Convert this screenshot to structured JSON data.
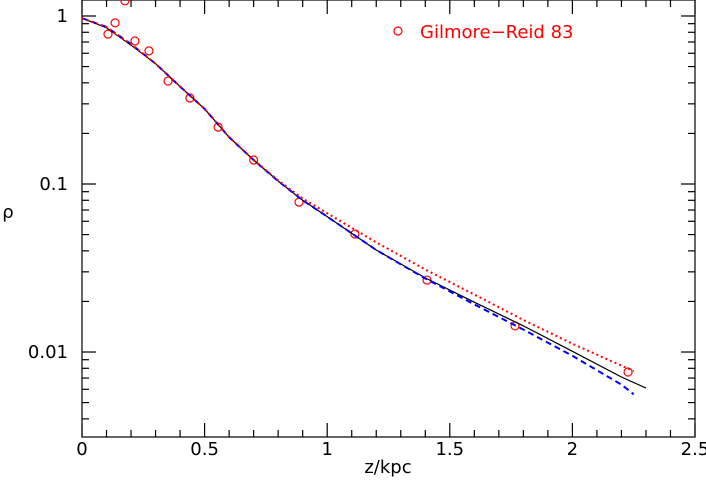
{
  "chart_data": {
    "type": "line",
    "xlabel": "z/kpc",
    "ylabel": "ρ",
    "xlim": [
      0,
      2.5
    ],
    "xticks": [
      0,
      0.5,
      1,
      1.5,
      2,
      2.5
    ],
    "ylim": [
      0.00312,
      1.245
    ],
    "yscale": "log",
    "yticks": [
      0.01,
      0.1,
      1
    ],
    "series": [
      {
        "name": "Gilmore−Reid 83",
        "style": "points",
        "color": "#ff0000",
        "x": [
          0.106,
          0.135,
          0.175,
          0.216,
          0.273,
          0.351,
          0.44,
          0.555,
          0.7,
          0.885,
          1.113,
          1.407,
          1.766,
          2.227
        ],
        "values": [
          0.78,
          0.91,
          1.23,
          0.71,
          0.62,
          0.41,
          0.325,
          0.218,
          0.139,
          0.078,
          0.0504,
          0.0268,
          0.0143,
          0.0076
        ]
      },
      {
        "style": "solid",
        "color": "#000000",
        "x": [
          0,
          0.1,
          0.2,
          0.3,
          0.4,
          0.5,
          0.6,
          0.7,
          0.8,
          0.9,
          1.0,
          1.2,
          1.4,
          1.6,
          1.8,
          2.0,
          2.2,
          2.3
        ],
        "values": [
          0.97,
          0.85,
          0.67,
          0.52,
          0.38,
          0.28,
          0.19,
          0.139,
          0.104,
          0.08,
          0.064,
          0.0405,
          0.0276,
          0.0198,
          0.0143,
          0.0101,
          0.0071,
          0.0061
        ]
      },
      {
        "style": "dashed",
        "color": "#0000ff",
        "x": [
          0,
          0.1,
          0.2,
          0.3,
          0.4,
          0.5,
          0.6,
          0.7,
          0.8,
          0.9,
          1.0,
          1.2,
          1.4,
          1.6,
          1.8,
          2.0,
          2.2,
          2.25
        ],
        "values": [
          0.97,
          0.86,
          0.68,
          0.52,
          0.38,
          0.28,
          0.19,
          0.139,
          0.104,
          0.08,
          0.064,
          0.0405,
          0.0274,
          0.0192,
          0.0136,
          0.0095,
          0.0064,
          0.0056
        ]
      },
      {
        "style": "dotted",
        "color": "#ff0000",
        "x": [
          0,
          0.1,
          0.2,
          0.3,
          0.4,
          0.5,
          0.6,
          0.7,
          0.8,
          0.9,
          1.0,
          1.2,
          1.4,
          1.6,
          1.8,
          2.0,
          2.2,
          2.25
        ],
        "values": [
          0.97,
          0.86,
          0.68,
          0.52,
          0.38,
          0.28,
          0.19,
          0.139,
          0.105,
          0.082,
          0.067,
          0.045,
          0.031,
          0.022,
          0.0155,
          0.0112,
          0.0083,
          0.0077
        ]
      }
    ],
    "legend": "upper right"
  }
}
